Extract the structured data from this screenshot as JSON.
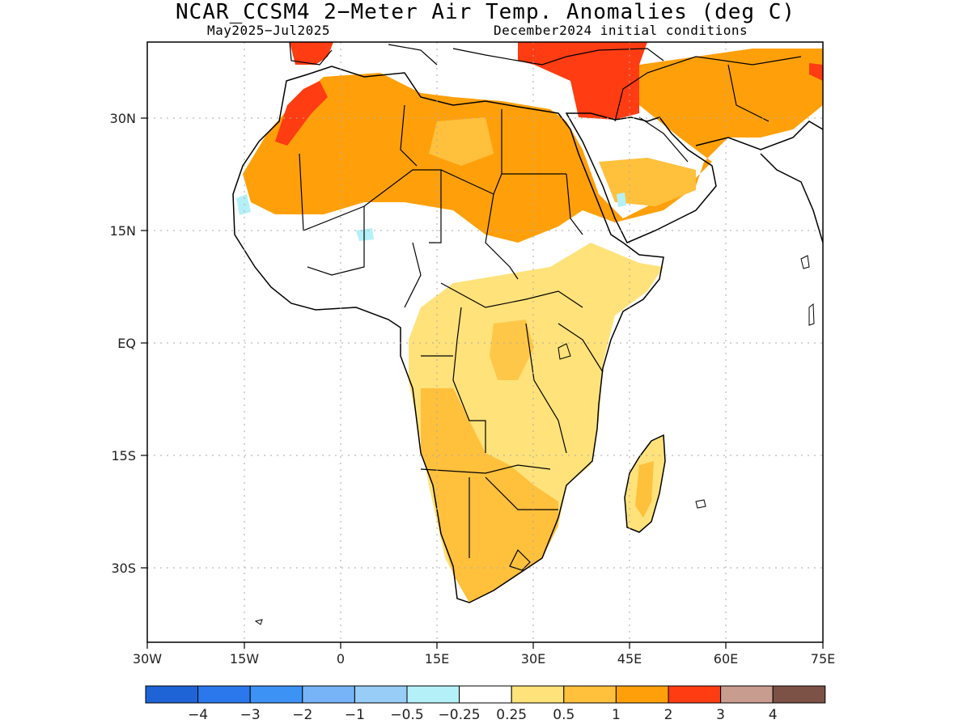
{
  "title": "NCAR_CCSM4 2−Meter Air Temp. Anomalies (deg C)",
  "subtitle_left": "May2025−Jul2025",
  "subtitle_right": "December2024 initial conditions",
  "lat_ticks": [
    "30N",
    "15N",
    "EQ",
    "15S",
    "30S"
  ],
  "lon_ticks": [
    "30W",
    "15W",
    "0",
    "15E",
    "30E",
    "45E",
    "60E",
    "75E"
  ],
  "colorbar": {
    "colors": [
      "#1e64d6",
      "#2a78eb",
      "#3d92f5",
      "#76b4f7",
      "#97cdf7",
      "#b4f0f8",
      "#ffffff",
      "#ffe27a",
      "#ffc03c",
      "#ffa00a",
      "#ff3c12",
      "#c89c8e",
      "#7d5246"
    ],
    "labels": [
      "−4",
      "−3",
      "−2",
      "−1",
      "−0.5",
      "−0.25",
      "0.25",
      "0.5",
      "1",
      "2",
      "3",
      "4"
    ]
  },
  "map_colors": {
    "land_outline": "#000000",
    "gridline": "#aaaaaa"
  }
}
